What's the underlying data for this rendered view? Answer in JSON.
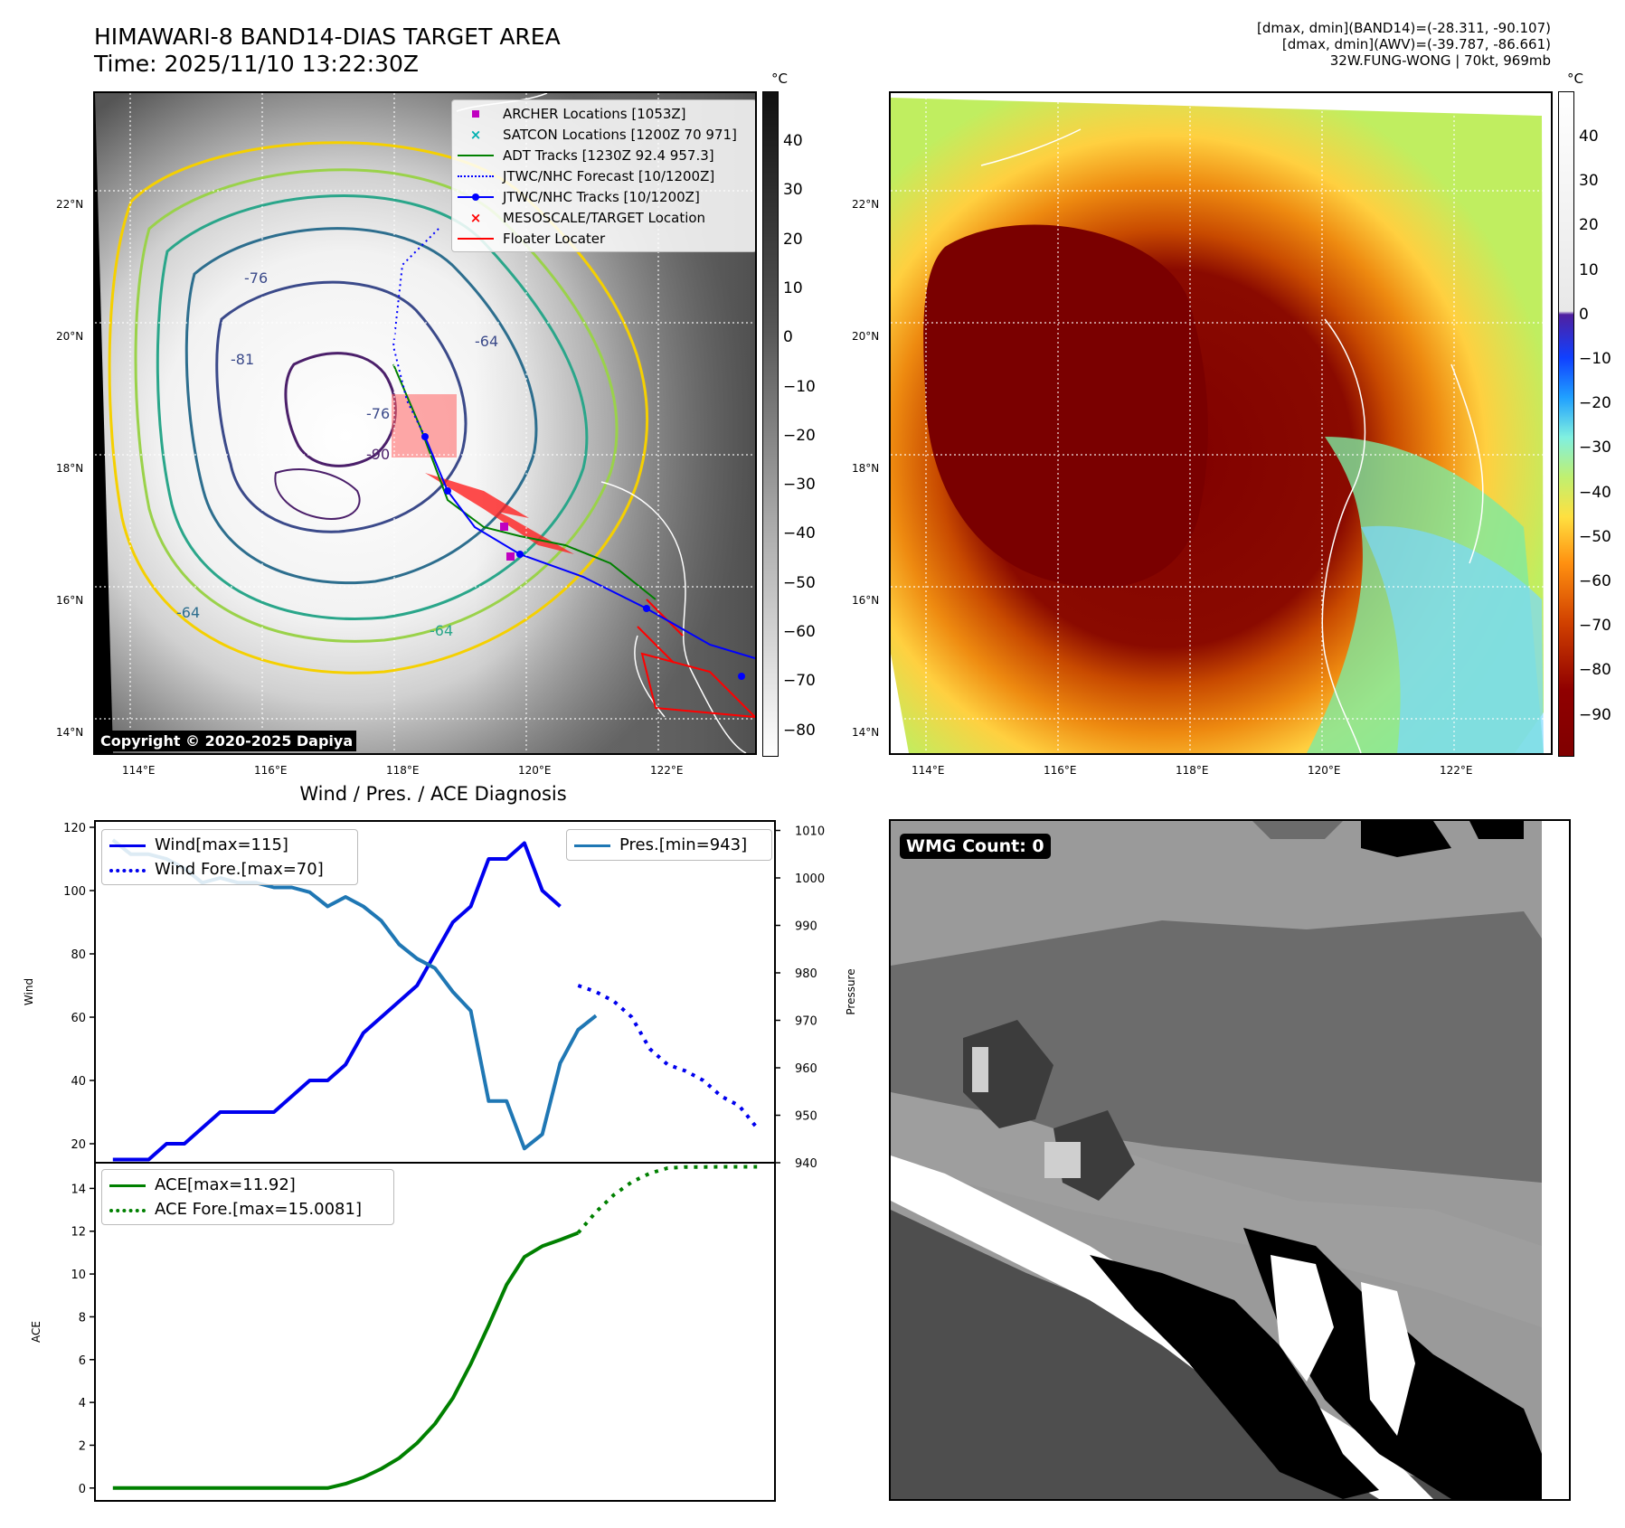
{
  "header": {
    "title_line1": "HIMAWARI-8 BAND14-DIAS TARGET AREA",
    "title_line2": "Time: 2025/11/10 13:22:30Z",
    "info_line1": "[dmax, dmin](BAND14)=(-28.311, -90.107)",
    "info_line2": "[dmax, dmin](AWV)=(-39.787, -86.661)",
    "info_line3": "32W.FUNG-WONG | 70kt, 969mb"
  },
  "map_left": {
    "legend": [
      {
        "label": "ARCHER Locations [1053Z]",
        "color": "#c000c0",
        "marker": "square"
      },
      {
        "label": "SATCON Locations [1200Z 70 971]",
        "color": "#00b0b0",
        "marker": "x"
      },
      {
        "label": "ADT Tracks [1230Z 92.4 957.3]",
        "color": "#008000",
        "marker": "line"
      },
      {
        "label": "JTWC/NHC Forecast [10/1200Z]",
        "color": "#0000ff",
        "marker": "dotted"
      },
      {
        "label": "JTWC/NHC Tracks [10/1200Z]",
        "color": "#0000ff",
        "marker": "line-dot"
      },
      {
        "label": "MESOSCALE/TARGET Location",
        "color": "#ff0000",
        "marker": "x"
      },
      {
        "label": "Floater Locater",
        "color": "#ff0000",
        "marker": "line"
      }
    ],
    "lat_ticks": [
      "22°N",
      "20°N",
      "18°N",
      "16°N",
      "14°N"
    ],
    "lon_ticks": [
      "114°E",
      "116°E",
      "118°E",
      "120°E",
      "122°E"
    ],
    "contour_labels": [
      "-76",
      "-64",
      "-81",
      "-90",
      "-64",
      "-64",
      "-76"
    ],
    "copyright": "Copyright © 2020-2025 Dapiya",
    "colorbar_unit": "°C",
    "colorbar_ticks": [
      "40",
      "30",
      "20",
      "10",
      "0",
      "−10",
      "−20",
      "−30",
      "−40",
      "−50",
      "−60",
      "−70",
      "−80"
    ]
  },
  "map_right": {
    "lat_ticks": [
      "22°N",
      "20°N",
      "18°N",
      "16°N",
      "14°N"
    ],
    "lon_ticks": [
      "114°E",
      "116°E",
      "118°E",
      "120°E",
      "122°E"
    ],
    "colorbar_unit": "°C",
    "colorbar_ticks": [
      "40",
      "30",
      "20",
      "10",
      "0",
      "−10",
      "−20",
      "−30",
      "−40",
      "−50",
      "−60",
      "−70",
      "−80",
      "−90"
    ]
  },
  "wmg": {
    "label": "WMG Count: 0"
  },
  "chart_data": [
    {
      "type": "line",
      "title": "Wind / Pres. / ACE Diagnosis",
      "ylabel": "Wind",
      "ylabel_right": "Pressure",
      "ylim": [
        14,
        122
      ],
      "ylim_right": [
        940,
        1012
      ],
      "yticks": [
        20,
        40,
        60,
        80,
        100,
        120
      ],
      "yticks_right": [
        940,
        950,
        960,
        970,
        980,
        990,
        1000,
        1010
      ],
      "xlim": [
        -1,
        37
      ],
      "color_wind": "#0000ee",
      "color_pres": "#1f77b4",
      "series": [
        {
          "name": "Wind[max=115]",
          "style": "solid",
          "color": "#0000ee",
          "x": [
            0,
            1,
            2,
            3,
            4,
            5,
            6,
            7,
            8,
            9,
            10,
            11,
            12,
            13,
            14,
            15,
            16,
            17,
            18,
            19,
            20,
            21,
            22,
            23,
            24,
            25
          ],
          "values": [
            15,
            15,
            15,
            20,
            20,
            25,
            30,
            30,
            30,
            30,
            35,
            40,
            40,
            45,
            55,
            60,
            65,
            70,
            80,
            90,
            95,
            110,
            110,
            115,
            100,
            95
          ]
        },
        {
          "name": "Wind Fore.[max=70]",
          "style": "dotted",
          "color": "#0000ee",
          "x": [
            26,
            27,
            28,
            29,
            30,
            31,
            32,
            33,
            34,
            35,
            36
          ],
          "values": [
            70,
            68,
            65,
            60,
            50,
            45,
            43,
            40,
            35,
            32,
            25
          ]
        },
        {
          "name": "Pres.[min=943]",
          "style": "solid",
          "color": "#1f77b4",
          "axis": "right",
          "x": [
            0,
            1,
            2,
            3,
            4,
            5,
            6,
            7,
            8,
            9,
            10,
            11,
            12,
            13,
            14,
            15,
            16,
            17,
            18,
            19,
            20,
            21,
            22,
            23,
            24,
            25,
            26,
            27
          ],
          "values": [
            1008,
            1005,
            1005,
            1004,
            1002,
            999,
            1000,
            999,
            999,
            998,
            998,
            997,
            994,
            996,
            994,
            991,
            986,
            983,
            981,
            976,
            972,
            953,
            953,
            943,
            946,
            961,
            968,
            971
          ]
        }
      ]
    },
    {
      "type": "line",
      "ylabel": "ACE",
      "ylim": [
        -0.6,
        15.2
      ],
      "yticks": [
        0,
        2,
        4,
        6,
        8,
        10,
        12,
        14
      ],
      "xlim": [
        -1,
        37
      ],
      "series": [
        {
          "name": "ACE[max=11.92]",
          "style": "solid",
          "color": "#008000",
          "x": [
            0,
            2,
            4,
            6,
            8,
            10,
            12,
            13,
            14,
            15,
            16,
            17,
            18,
            19,
            20,
            21,
            22,
            23,
            24,
            25,
            26
          ],
          "values": [
            0,
            0,
            0,
            0,
            0,
            0,
            0,
            0.2,
            0.5,
            0.9,
            1.4,
            2.1,
            3,
            4.2,
            5.8,
            7.6,
            9.5,
            10.8,
            11.3,
            11.6,
            11.92
          ]
        },
        {
          "name": "ACE Fore.[max=15.0081]",
          "style": "dotted",
          "color": "#008000",
          "x": [
            26,
            27,
            28,
            29,
            30,
            31,
            32,
            33,
            34,
            35,
            36
          ],
          "values": [
            11.92,
            12.9,
            13.7,
            14.3,
            14.7,
            14.95,
            15.0,
            15.0,
            15.0081,
            15.0081,
            15.0081
          ]
        }
      ]
    }
  ]
}
